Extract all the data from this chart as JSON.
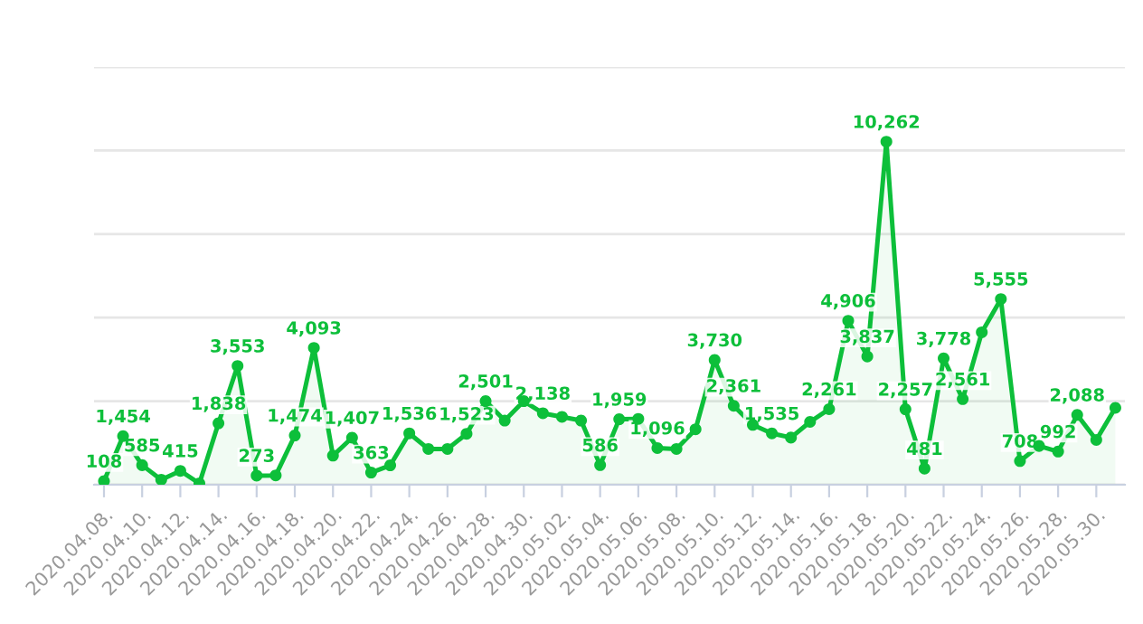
{
  "chart_data": {
    "type": "area",
    "x": [
      "2020-04-08",
      "2020-04-09",
      "2020-04-10",
      "2020-04-11",
      "2020-04-12",
      "2020-04-13",
      "2020-04-14",
      "2020-04-15",
      "2020-04-16",
      "2020-04-17",
      "2020-04-18",
      "2020-04-19",
      "2020-04-20",
      "2020-04-21",
      "2020-04-22",
      "2020-04-23",
      "2020-04-24",
      "2020-04-25",
      "2020-04-26",
      "2020-04-27",
      "2020-04-28",
      "2020-04-29",
      "2020-04-30",
      "2020-05-01",
      "2020-05-02",
      "2020-05-03",
      "2020-05-04",
      "2020-05-05",
      "2020-05-06",
      "2020-05-07",
      "2020-05-08",
      "2020-05-09",
      "2020-05-10",
      "2020-05-11",
      "2020-05-12",
      "2020-05-13",
      "2020-05-14",
      "2020-05-15",
      "2020-05-16",
      "2020-05-17",
      "2020-05-18",
      "2020-05-19",
      "2020-05-20",
      "2020-05-21",
      "2020-05-22",
      "2020-05-23",
      "2020-05-24",
      "2020-05-25",
      "2020-05-26",
      "2020-05-27",
      "2020-05-28",
      "2020-05-29",
      "2020-05-30",
      "2020-05-31"
    ],
    "series": [
      {
        "color": "#0dbf3a",
        "values": [
          108,
          1454,
          585,
          150,
          415,
          40,
          1838,
          3553,
          273,
          280,
          1474,
          4093,
          870,
          1407,
          363,
          580,
          1536,
          1070,
          1070,
          1523,
          2501,
          1920,
          2500,
          2138,
          2030,
          1920,
          586,
          1959,
          1970,
          1096,
          1070,
          1660,
          3730,
          2361,
          1790,
          1535,
          1410,
          1880,
          2261,
          4906,
          3837,
          10262,
          2257,
          481,
          3778,
          2561,
          4560,
          5555,
          708,
          1160,
          992,
          2088,
          1340,
          2300
        ],
        "value_labels": [
          "108",
          "1,454",
          "585",
          null,
          "415",
          null,
          "1,838",
          "3,553",
          "273",
          null,
          "1,474",
          "4,093",
          null,
          "1,407",
          "363",
          null,
          "1,536",
          null,
          null,
          "1,523",
          "2,501",
          null,
          null,
          "2,138",
          null,
          null,
          "586",
          "1,959",
          null,
          "1,096",
          null,
          null,
          "3,730",
          "2,361",
          null,
          "1,535",
          null,
          null,
          "2,261",
          "4,906",
          "3,837",
          "10,262",
          "2,257",
          "481",
          "3,778",
          "2,561",
          null,
          "5,555",
          "708",
          null,
          "992",
          "2,088",
          null,
          null
        ]
      }
    ],
    "xlim": [
      "2020-04-07T11:30",
      "2020-05-31T12:00"
    ],
    "xticks": [
      {
        "value": "2020-04-08",
        "label": "2020.04.08."
      },
      {
        "value": "2020-04-10",
        "label": "2020.04.10."
      },
      {
        "value": "2020-04-12",
        "label": "2020.04.12."
      },
      {
        "value": "2020-04-14",
        "label": "2020.04.14."
      },
      {
        "value": "2020-04-16",
        "label": "2020.04.16."
      },
      {
        "value": "2020-04-18",
        "label": "2020.04.18."
      },
      {
        "value": "2020-04-20",
        "label": "2020.04.20."
      },
      {
        "value": "2020-04-22",
        "label": "2020.04.22."
      },
      {
        "value": "2020-04-24",
        "label": "2020.04.24."
      },
      {
        "value": "2020-04-26",
        "label": "2020.04.26."
      },
      {
        "value": "2020-04-28",
        "label": "2020.04.28."
      },
      {
        "value": "2020-04-30",
        "label": "2020.04.30."
      },
      {
        "value": "2020-05-02",
        "label": "2020.05.02."
      },
      {
        "value": "2020-05-04",
        "label": "2020.05.04."
      },
      {
        "value": "2020-05-06",
        "label": "2020.05.06."
      },
      {
        "value": "2020-05-08",
        "label": "2020.05.08."
      },
      {
        "value": "2020-05-10",
        "label": "2020.05.10."
      },
      {
        "value": "2020-05-12",
        "label": "2020.05.12."
      },
      {
        "value": "2020-05-14",
        "label": "2020.05.14."
      },
      {
        "value": "2020-05-16",
        "label": "2020.05.16."
      },
      {
        "value": "2020-05-18",
        "label": "2020.05.18."
      },
      {
        "value": "2020-05-20",
        "label": "2020.05.20."
      },
      {
        "value": "2020-05-22",
        "label": "2020.05.22."
      },
      {
        "value": "2020-05-24",
        "label": "2020.05.24."
      },
      {
        "value": "2020-05-26",
        "label": "2020.05.26."
      },
      {
        "value": "2020-05-28",
        "label": "2020.05.28."
      },
      {
        "value": "2020-05-30",
        "label": "2020.05.30."
      }
    ],
    "ylim": [
      0,
      12500
    ],
    "yticks": [
      {
        "value": 0,
        "label": null
      },
      {
        "value": 2500,
        "label": null
      },
      {
        "value": 5000,
        "label": null
      },
      {
        "value": 7500,
        "label": null
      },
      {
        "value": 10000,
        "label": null
      },
      {
        "value": 12500,
        "label": null
      }
    ],
    "tick_labels": "x",
    "grid": "y",
    "marker": "circle",
    "line_style": "solid",
    "legend": false
  }
}
